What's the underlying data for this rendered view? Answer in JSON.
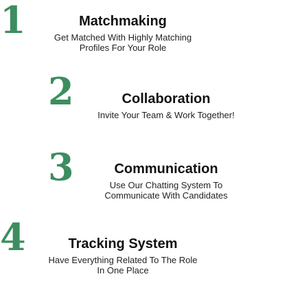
{
  "accent_color": "#3d8d5f",
  "steps": [
    {
      "number": "1",
      "title": "Matchmaking",
      "description_lines": [
        "Get Matched With Highly Matching",
        "Profiles For Your Role"
      ]
    },
    {
      "number": "2",
      "title": "Collaboration",
      "description_lines": [
        "Invite Your Team & Work Together!"
      ]
    },
    {
      "number": "3",
      "title": "Communication",
      "description_lines": [
        "Use Our Chatting System To",
        "Communicate With Candidates"
      ]
    },
    {
      "number": "4",
      "title": "Tracking System",
      "description_lines": [
        "Have Everything Related To The Role",
        "In One Place"
      ]
    }
  ]
}
